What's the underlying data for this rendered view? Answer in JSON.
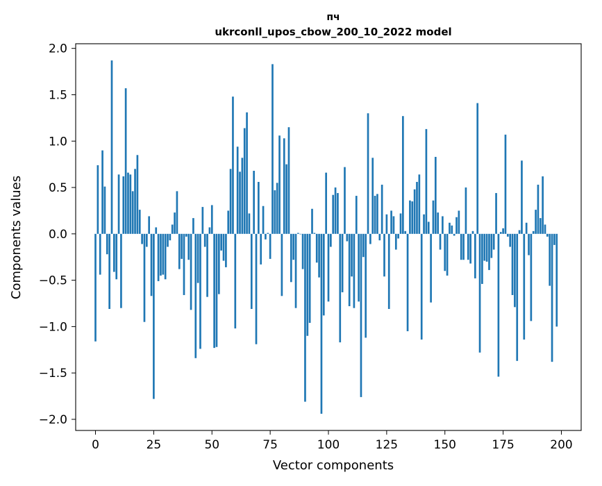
{
  "chart_data": {
    "type": "bar",
    "title_line1": "пч",
    "title_line2": "ukrconll_upos_cbow_200_10_2022 model",
    "xlabel": "Vector components",
    "ylabel": "Components values",
    "xlim": [
      -8.5,
      208.5
    ],
    "ylim": [
      -2.12,
      2.05
    ],
    "xticks": [
      0,
      25,
      50,
      75,
      100,
      125,
      150,
      175,
      200
    ],
    "xtick_labels": [
      "0",
      "25",
      "50",
      "75",
      "100",
      "125",
      "150",
      "175",
      "200"
    ],
    "yticks": [
      2.0,
      1.5,
      1.0,
      0.5,
      0.0,
      -0.5,
      -1.0,
      -1.5,
      -2.0
    ],
    "ytick_labels": [
      "2.0",
      "1.5",
      "1.0",
      "0.5",
      "0.0",
      "−0.5",
      "−1.0",
      "−1.5",
      "−2.0"
    ],
    "bar_color": "#1f77b4",
    "values": [
      -1.16,
      0.74,
      -0.44,
      0.9,
      0.51,
      -0.22,
      -0.81,
      1.87,
      -0.41,
      -0.49,
      0.64,
      -0.8,
      0.62,
      1.57,
      0.66,
      0.64,
      0.46,
      0.7,
      0.85,
      0.26,
      -0.11,
      -0.95,
      -0.14,
      0.19,
      -0.67,
      -1.78,
      0.07,
      -0.51,
      -0.45,
      -0.44,
      -0.49,
      -0.14,
      -0.07,
      0.1,
      0.23,
      0.46,
      -0.38,
      -0.27,
      -0.66,
      -0.03,
      -0.28,
      -0.82,
      0.17,
      -1.34,
      -0.53,
      -1.24,
      0.29,
      -0.14,
      -0.68,
      0.07,
      0.31,
      -1.23,
      -1.22,
      -0.65,
      -0.18,
      -0.29,
      -0.36,
      0.25,
      0.7,
      1.48,
      -1.02,
      0.94,
      0.67,
      0.82,
      1.14,
      1.31,
      0.22,
      -0.81,
      0.68,
      -1.19,
      0.56,
      -0.33,
      0.3,
      -0.06,
      0.01,
      -0.27,
      1.83,
      0.47,
      0.55,
      1.06,
      -0.67,
      1.03,
      0.75,
      1.15,
      -0.52,
      -0.28,
      -0.8,
      0.01,
      0.0,
      -0.38,
      -1.81,
      -1.1,
      -0.96,
      0.27,
      0.01,
      -0.31,
      -0.47,
      -1.94,
      -0.88,
      0.66,
      -0.73,
      -0.14,
      0.42,
      0.5,
      0.44,
      -1.17,
      -0.63,
      0.72,
      -0.08,
      -0.78,
      -0.46,
      -0.8,
      0.41,
      -0.73,
      -1.76,
      -0.25,
      -1.12,
      1.3,
      -0.11,
      0.82,
      0.41,
      0.43,
      -0.07,
      0.53,
      -0.46,
      0.21,
      -0.81,
      0.25,
      0.19,
      -0.17,
      -0.05,
      0.22,
      1.27,
      0.03,
      -1.05,
      0.36,
      0.35,
      0.48,
      0.56,
      0.64,
      -1.14,
      0.21,
      1.13,
      0.13,
      -0.74,
      0.36,
      0.83,
      0.23,
      -0.17,
      0.19,
      -0.4,
      -0.45,
      0.12,
      0.09,
      -0.02,
      0.18,
      0.25,
      -0.28,
      -0.28,
      0.5,
      -0.28,
      -0.32,
      0.03,
      -0.48,
      1.41,
      -1.28,
      -0.54,
      -0.29,
      -0.3,
      -0.39,
      -0.26,
      -0.17,
      0.44,
      -1.54,
      0.02,
      0.06,
      1.07,
      -0.03,
      -0.14,
      -0.66,
      -0.79,
      -1.37,
      0.04,
      0.79,
      -1.14,
      0.12,
      -0.23,
      -0.94,
      0.03,
      0.26,
      0.53,
      0.17,
      0.62,
      0.1,
      -0.03,
      -0.56,
      -1.38,
      -0.12,
      -1.0
    ]
  }
}
